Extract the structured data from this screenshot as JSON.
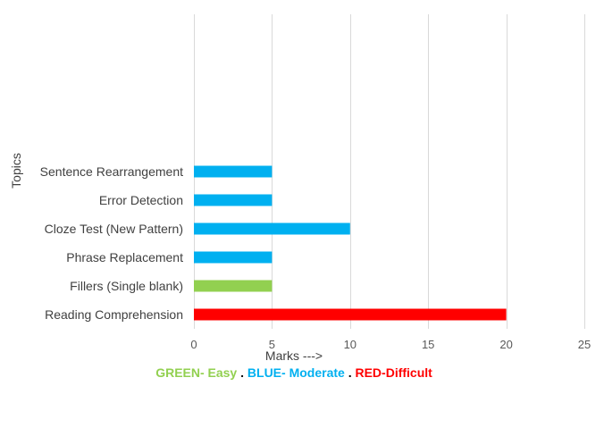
{
  "chart_data": {
    "type": "bar",
    "orientation": "horizontal",
    "categories": [
      "Reading Comprehension",
      "Fillers (Single blank)",
      "Phrase Replacement",
      "Cloze Test (New Pattern)",
      "Error Detection",
      "Sentence Rearrangement"
    ],
    "values": [
      20,
      5,
      5,
      10,
      5,
      5
    ],
    "bar_colors": [
      "#ff0000",
      "#92d050",
      "#00b0f0",
      "#00b0f0",
      "#00b0f0",
      "#00b0f0"
    ],
    "xlabel": "Marks --->",
    "ylabel": "Topics",
    "xlim": [
      0,
      25
    ],
    "xticks": [
      0,
      5,
      10,
      15,
      20,
      25
    ],
    "grid": true
  },
  "legend": [
    {
      "text": "GREEN- Easy",
      "color": "#92d050"
    },
    {
      "text": " . ",
      "color": "#000000"
    },
    {
      "text": "BLUE- Moderate",
      "color": "#00b0f0"
    },
    {
      "text": " . ",
      "color": "#000000"
    },
    {
      "text": "RED-Difficult",
      "color": "#ff0000"
    }
  ]
}
